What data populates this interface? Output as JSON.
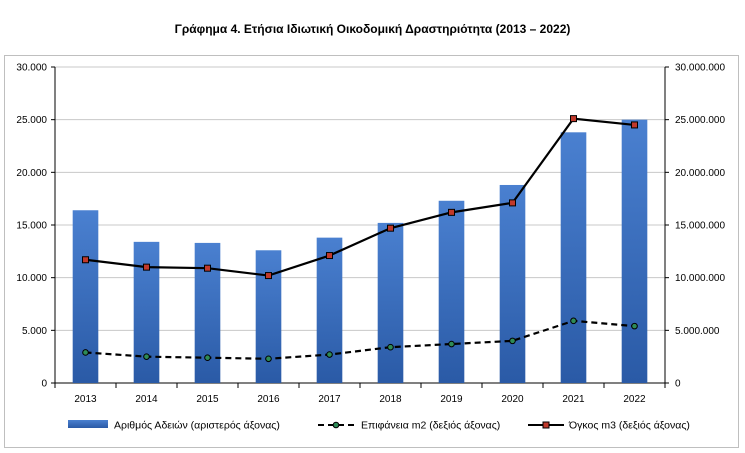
{
  "title": "Γράφημα 4. Ετήσια Ιδιωτική Οικοδομική Δραστηριότητα (2013 – 2022)",
  "chart_data": {
    "type": "bar",
    "categories": [
      "2013",
      "2014",
      "2015",
      "2016",
      "2017",
      "2018",
      "2019",
      "2020",
      "2021",
      "2022"
    ],
    "series": [
      {
        "name": "Αριθμός Αδειών (αριστερός άξονας)",
        "type": "bar",
        "axis": "left",
        "color": "#3a6bbf",
        "values": [
          16400,
          13400,
          13300,
          12600,
          13800,
          15200,
          17300,
          18800,
          23800,
          25000
        ]
      },
      {
        "name": "Επιφάνεια m2 (δεξιός άξονας)",
        "type": "line",
        "style": "dashed",
        "marker_color": "#2e8b57",
        "axis": "right",
        "color": "#000000",
        "values": [
          2900000,
          2500000,
          2400000,
          2300000,
          2700000,
          3400000,
          3700000,
          4000000,
          5900000,
          5400000
        ]
      },
      {
        "name": "Όγκος m3 (δεξιός άξονας)",
        "type": "line",
        "style": "solid",
        "marker_color": "#c0392b",
        "axis": "right",
        "color": "#000000",
        "values": [
          11700000,
          11000000,
          10900000,
          10200000,
          12100000,
          14700000,
          16200000,
          17100000,
          25100000,
          24500000
        ]
      }
    ],
    "y_left": {
      "ylim": [
        0,
        30000
      ],
      "ticks": [
        "0",
        "5.000",
        "10.000",
        "15.000",
        "20.000",
        "25.000",
        "30.000"
      ]
    },
    "y_right": {
      "ylim": [
        0,
        30000000
      ],
      "ticks": [
        "0",
        "5.000.000",
        "10.000.000",
        "15.000.000",
        "20.000.000",
        "25.000.000",
        "30.000.000"
      ]
    },
    "grid": true,
    "legend_position": "bottom"
  }
}
